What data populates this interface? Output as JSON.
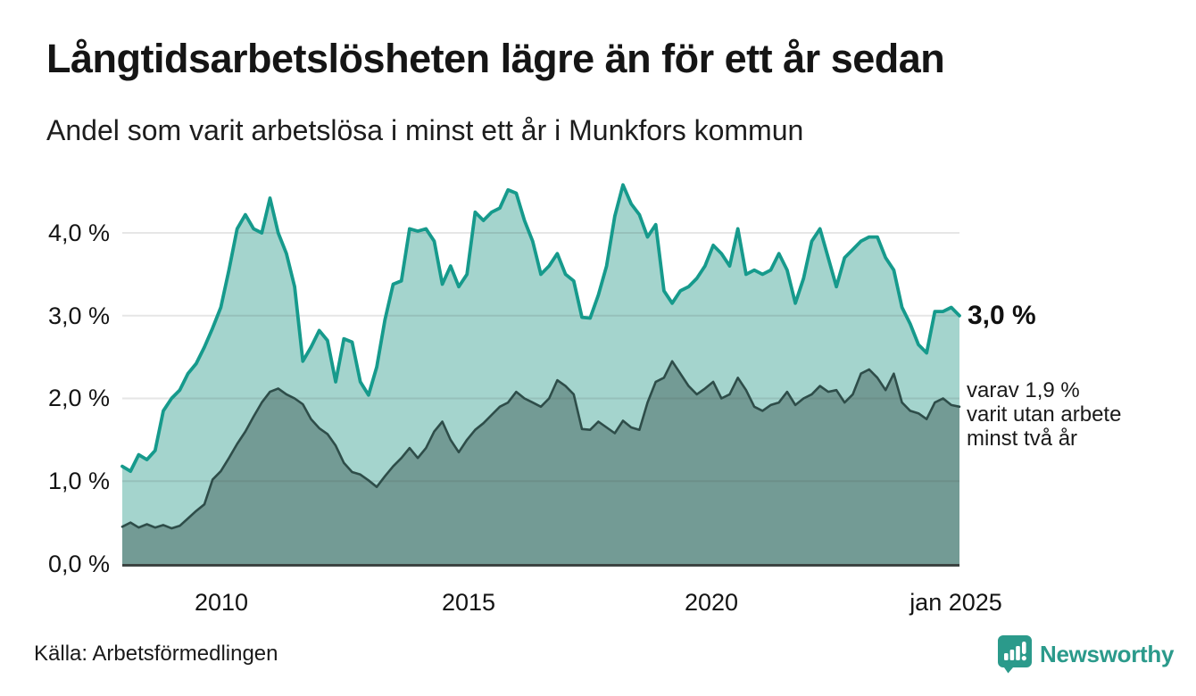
{
  "chart_data": {
    "type": "area",
    "title": "Långtidsarbetslösheten lägre än för ett år sedan",
    "subtitle": "Andel som varit arbetslösa i minst ett år i Munkfors kommun",
    "source": "Källa: Arbetsförmedlingen",
    "unit": "%",
    "x_start": 2008.0,
    "x_step_years": 0.1666667,
    "x_range": [
      2008.0,
      2025.04
    ],
    "ylim": [
      0,
      4.75
    ],
    "grid": "horizontal",
    "legend_position": "right-annotations",
    "y_ticks": [
      {
        "value": 0,
        "label": "0,0 %"
      },
      {
        "value": 1,
        "label": "1,0 %"
      },
      {
        "value": 2,
        "label": "2,0 %"
      },
      {
        "value": 3,
        "label": "3,0 %"
      },
      {
        "value": 4,
        "label": "4,0 %"
      }
    ],
    "x_ticks": [
      {
        "year": 2010,
        "label": "2010"
      },
      {
        "year": 2015,
        "label": "2015"
      },
      {
        "year": 2020,
        "label": "2020"
      },
      {
        "year": 2025,
        "label": "jan 2025"
      }
    ],
    "series": [
      {
        "name": "Andel arbetslösa minst ett år",
        "end_value_label": "3,0 %",
        "line_color": "#169a8c",
        "fill_color": "#a4d4cd",
        "values": [
          1.18,
          1.12,
          1.32,
          1.26,
          1.37,
          1.85,
          2.0,
          2.1,
          2.3,
          2.42,
          2.62,
          2.85,
          3.1,
          3.55,
          4.05,
          4.22,
          4.05,
          4.0,
          4.42,
          4.0,
          3.75,
          3.35,
          2.45,
          2.62,
          2.82,
          2.7,
          2.2,
          2.72,
          2.68,
          2.2,
          2.04,
          2.38,
          2.95,
          3.38,
          3.42,
          4.05,
          4.02,
          4.05,
          3.9,
          3.38,
          3.6,
          3.35,
          3.5,
          4.25,
          4.15,
          4.25,
          4.3,
          4.52,
          4.48,
          4.15,
          3.9,
          3.5,
          3.6,
          3.75,
          3.5,
          3.42,
          2.98,
          2.97,
          3.25,
          3.6,
          4.2,
          4.58,
          4.35,
          4.22,
          3.95,
          4.1,
          3.3,
          3.15,
          3.3,
          3.35,
          3.45,
          3.6,
          3.85,
          3.75,
          3.6,
          4.05,
          3.5,
          3.55,
          3.5,
          3.55,
          3.75,
          3.55,
          3.15,
          3.45,
          3.9,
          4.05,
          3.7,
          3.35,
          3.7,
          3.8,
          3.9,
          3.95,
          3.95,
          3.7,
          3.55,
          3.1,
          2.9,
          2.65,
          2.55,
          3.05,
          3.05,
          3.1,
          3.0
        ]
      },
      {
        "name": "varav utan arbete minst två år",
        "end_value_label_lines": [
          "varav 1,9 %",
          "varit utan arbete",
          "minst två år"
        ],
        "line_color": "#2e4d49",
        "fill_color": "rgba(52,82,78,0.44)",
        "values": [
          0.45,
          0.5,
          0.44,
          0.48,
          0.44,
          0.47,
          0.43,
          0.46,
          0.55,
          0.64,
          0.72,
          1.02,
          1.12,
          1.28,
          1.45,
          1.6,
          1.78,
          1.95,
          2.08,
          2.12,
          2.05,
          2.0,
          1.93,
          1.75,
          1.64,
          1.57,
          1.43,
          1.22,
          1.11,
          1.08,
          1.01,
          0.93,
          1.06,
          1.18,
          1.28,
          1.4,
          1.28,
          1.4,
          1.6,
          1.72,
          1.5,
          1.35,
          1.5,
          1.62,
          1.7,
          1.8,
          1.9,
          1.95,
          2.08,
          2.0,
          1.95,
          1.9,
          2.0,
          2.22,
          2.15,
          2.05,
          1.63,
          1.62,
          1.72,
          1.65,
          1.58,
          1.73,
          1.65,
          1.62,
          1.95,
          2.2,
          2.25,
          2.45,
          2.3,
          2.15,
          2.05,
          2.12,
          2.2,
          2.0,
          2.05,
          2.25,
          2.1,
          1.9,
          1.85,
          1.92,
          1.95,
          2.08,
          1.92,
          2.0,
          2.05,
          2.15,
          2.08,
          2.1,
          1.95,
          2.05,
          2.3,
          2.35,
          2.25,
          2.1,
          2.3,
          1.95,
          1.85,
          1.82,
          1.75,
          1.95,
          2.0,
          1.92,
          1.9
        ]
      }
    ]
  },
  "branding": {
    "name": "Newsworthy",
    "brand_color": "#2b9a8b",
    "logo_icon": "pin-with-bar-chart-and-exclamation"
  },
  "colors": {
    "grid": "rgba(60,60,60,0.13)",
    "axis": "#3c4442",
    "background": "#ffffff"
  }
}
